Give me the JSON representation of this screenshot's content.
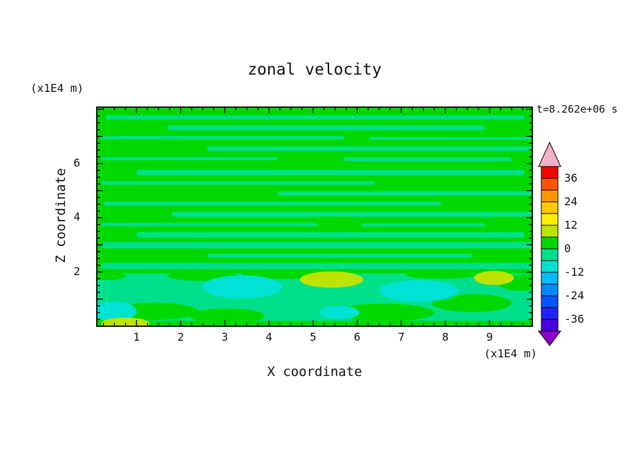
{
  "chart_data": {
    "type": "heatmap",
    "title": "zonal velocity",
    "timestamp": "t=8.262e+06 s",
    "xlabel": "X coordinate",
    "ylabel": "Z coordinate",
    "x_units": "(x1E4 m)",
    "y_units": "(x1E4 m)",
    "x_range": [
      0.1,
      9.97
    ],
    "z_range": [
      0.0,
      8.08
    ],
    "x_ticks": [
      1,
      2,
      3,
      4,
      5,
      6,
      7,
      8,
      9
    ],
    "z_tick_labels": [
      2,
      4,
      6
    ],
    "z_major_ticks": [
      1,
      2,
      3,
      4,
      5,
      6,
      7,
      8
    ],
    "x_minor_step": 0.25,
    "z_minor_step": 0.25,
    "grid": false,
    "colorbar": {
      "levels": [
        -42,
        -36,
        -30,
        -24,
        -18,
        -12,
        -6,
        0,
        6,
        12,
        18,
        24,
        30,
        36,
        42
      ],
      "colors": [
        "#4a00dd",
        "#2222ff",
        "#0055ff",
        "#0088ff",
        "#00bbff",
        "#00e2d4",
        "#00e08a",
        "#00d800",
        "#bce400",
        "#ffee00",
        "#ffc800",
        "#ff9800",
        "#ff5500",
        "#f00800"
      ],
      "under_color": "#8a00c4",
      "over_color": "#f2b2c6",
      "labels": [
        36,
        24,
        12,
        0,
        -12,
        -24,
        -36
      ]
    },
    "field": {
      "colors": {
        "pos6to12": "#bce400",
        "pos0to6": "#00d800",
        "neg6to0": "#00e08a",
        "neg12toneg6": "#00e2d4"
      },
      "background": "pos0to6",
      "streaks_level": "neg6to0",
      "streaks": [
        {
          "x": [
            0.3,
            9.8
          ],
          "z": 7.7,
          "dz": 0.15
        },
        {
          "x": [
            1.7,
            8.9
          ],
          "z": 7.32,
          "dz": 0.18
        },
        {
          "x": [
            0.2,
            5.7
          ],
          "z": 6.95,
          "dz": 0.12
        },
        {
          "x": [
            6.3,
            9.97
          ],
          "z": 6.93,
          "dz": 0.1
        },
        {
          "x": [
            2.6,
            9.97
          ],
          "z": 6.55,
          "dz": 0.16
        },
        {
          "x": [
            0.2,
            4.2
          ],
          "z": 6.18,
          "dz": 0.12
        },
        {
          "x": [
            5.7,
            9.5
          ],
          "z": 6.16,
          "dz": 0.14
        },
        {
          "x": [
            1.0,
            9.8
          ],
          "z": 5.67,
          "dz": 0.2
        },
        {
          "x": [
            0.2,
            6.4
          ],
          "z": 5.28,
          "dz": 0.13
        },
        {
          "x": [
            4.2,
            9.97
          ],
          "z": 4.9,
          "dz": 0.16
        },
        {
          "x": [
            0.25,
            7.9
          ],
          "z": 4.52,
          "dz": 0.14
        },
        {
          "x": [
            1.8,
            9.97
          ],
          "z": 4.13,
          "dz": 0.18
        },
        {
          "x": [
            0.2,
            5.1
          ],
          "z": 3.75,
          "dz": 0.12
        },
        {
          "x": [
            6.1,
            8.9
          ],
          "z": 3.74,
          "dz": 0.12
        },
        {
          "x": [
            1.0,
            9.8
          ],
          "z": 3.37,
          "dz": 0.2
        },
        {
          "x": [
            0.2,
            9.97
          ],
          "z": 2.99,
          "dz": 0.24
        },
        {
          "x": [
            2.6,
            8.6
          ],
          "z": 2.6,
          "dz": 0.14
        },
        {
          "x": [
            0.2,
            9.97
          ],
          "z": 2.22,
          "dz": 0.22
        }
      ],
      "band": {
        "x": [
          0.1,
          9.97
        ],
        "z": [
          0.2,
          1.95
        ],
        "level": "neg6to0"
      },
      "green_blobs": [
        {
          "cx": 1.4,
          "cz": 0.55,
          "rx": 1.0,
          "rz": 0.32
        },
        {
          "cx": 3.05,
          "cz": 0.38,
          "rx": 0.85,
          "rz": 0.28
        },
        {
          "cx": 6.6,
          "cz": 0.5,
          "rx": 1.15,
          "rz": 0.33
        },
        {
          "cx": 8.6,
          "cz": 0.85,
          "rx": 0.9,
          "rz": 0.33
        },
        {
          "cx": 9.7,
          "cz": 1.6,
          "rx": 0.5,
          "rz": 0.3
        },
        {
          "cx": 2.5,
          "cz": 1.85,
          "rx": 0.8,
          "rz": 0.18
        },
        {
          "cx": 4.3,
          "cz": 1.9,
          "rx": 0.9,
          "rz": 0.16
        },
        {
          "cx": 7.9,
          "cz": 1.9,
          "rx": 0.8,
          "rz": 0.15
        },
        {
          "cx": 0.3,
          "cz": 1.85,
          "rx": 0.45,
          "rz": 0.15
        }
      ],
      "aqua_blobs": [
        {
          "cx": 3.4,
          "cz": 1.45,
          "rx": 0.9,
          "rz": 0.43
        },
        {
          "cx": 7.4,
          "cz": 1.3,
          "rx": 0.9,
          "rz": 0.4
        },
        {
          "cx": 0.5,
          "cz": 0.55,
          "rx": 0.5,
          "rz": 0.36
        },
        {
          "cx": 5.6,
          "cz": 0.5,
          "rx": 0.45,
          "rz": 0.24
        }
      ],
      "yellowgreen_blobs": [
        {
          "cx": 5.42,
          "cz": 1.72,
          "rx": 0.72,
          "rz": 0.3
        },
        {
          "cx": 9.1,
          "cz": 1.78,
          "rx": 0.45,
          "rz": 0.26
        },
        {
          "cx": 0.75,
          "cz": 0.1,
          "rx": 0.55,
          "rz": 0.22
        }
      ]
    }
  }
}
